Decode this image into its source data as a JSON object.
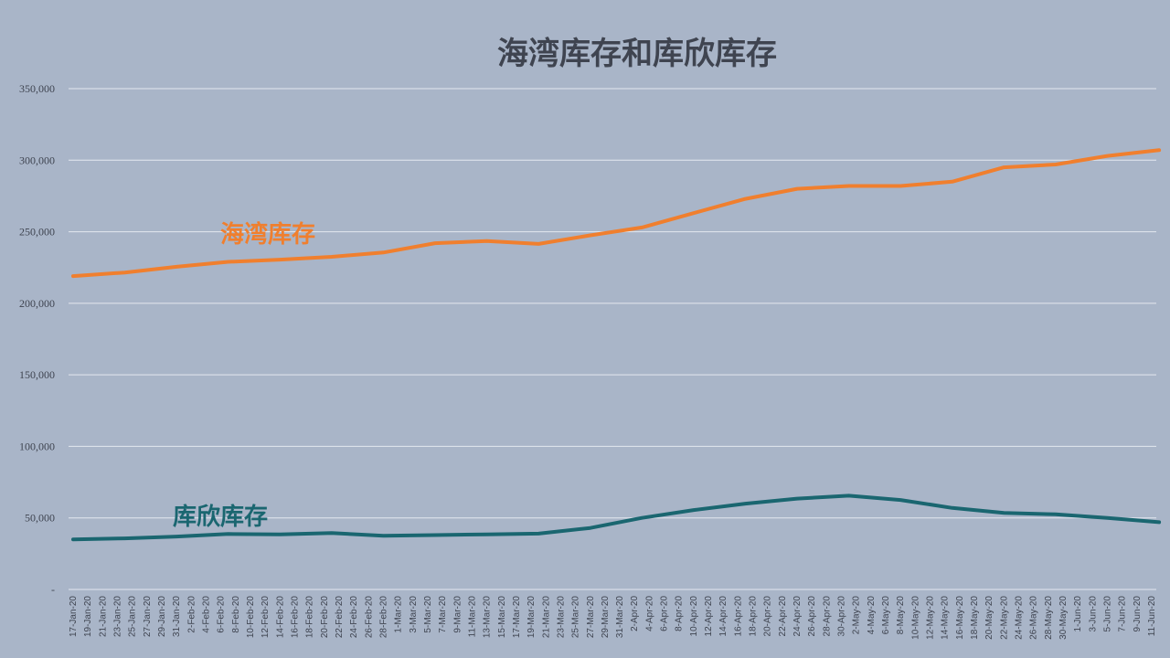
{
  "chart_data": {
    "type": "line",
    "title": "海湾库存和库欣库存",
    "xlabel": "",
    "ylabel": "",
    "ylim": [
      0,
      350000
    ],
    "y_ticks": [
      0,
      50000,
      100000,
      150000,
      200000,
      250000,
      300000,
      350000
    ],
    "y_tick_labels": [
      "-",
      "50,000",
      "100,000",
      "150,000",
      "200,000",
      "250,000",
      "300,000",
      "350,000"
    ],
    "grid": true,
    "legend": "inline",
    "categories": [
      "17-Jan-20",
      "19-Jan-20",
      "21-Jan-20",
      "23-Jan-20",
      "25-Jan-20",
      "27-Jan-20",
      "29-Jan-20",
      "31-Jan-20",
      "2-Feb-20",
      "4-Feb-20",
      "6-Feb-20",
      "8-Feb-20",
      "10-Feb-20",
      "12-Feb-20",
      "14-Feb-20",
      "16-Feb-20",
      "18-Feb-20",
      "20-Feb-20",
      "22-Feb-20",
      "24-Feb-20",
      "26-Feb-20",
      "28-Feb-20",
      "1-Mar-20",
      "3-Mar-20",
      "5-Mar-20",
      "7-Mar-20",
      "9-Mar-20",
      "11-Mar-20",
      "13-Mar-20",
      "15-Mar-20",
      "17-Mar-20",
      "19-Mar-20",
      "21-Mar-20",
      "23-Mar-20",
      "25-Mar-20",
      "27-Mar-20",
      "29-Mar-20",
      "31-Mar-20",
      "2-Apr-20",
      "4-Apr-20",
      "6-Apr-20",
      "8-Apr-20",
      "10-Apr-20",
      "12-Apr-20",
      "14-Apr-20",
      "16-Apr-20",
      "18-Apr-20",
      "20-Apr-20",
      "22-Apr-20",
      "24-Apr-20",
      "26-Apr-20",
      "28-Apr-20",
      "30-Apr-20",
      "2-May-20",
      "4-May-20",
      "6-May-20",
      "8-May-20",
      "10-May-20",
      "12-May-20",
      "14-May-20",
      "16-May-20",
      "18-May-20",
      "20-May-20",
      "22-May-20",
      "24-May-20",
      "26-May-20",
      "28-May-20",
      "30-May-20",
      "1-Jun-20",
      "3-Jun-20",
      "5-Jun-20",
      "7-Jun-20",
      "9-Jun-20",
      "11-Jun-20"
    ],
    "series": [
      {
        "name": "海湾库存",
        "color": "#f07f2e",
        "points": [
          [
            "17-Jan-20",
            219000
          ],
          [
            "24-Jan-20",
            221500
          ],
          [
            "31-Jan-20",
            225500
          ],
          [
            "7-Feb-20",
            229000
          ],
          [
            "14-Feb-20",
            230500
          ],
          [
            "21-Feb-20",
            232500
          ],
          [
            "28-Feb-20",
            235500
          ],
          [
            "6-Mar-20",
            242000
          ],
          [
            "13-Mar-20",
            243500
          ],
          [
            "20-Mar-20",
            241500
          ],
          [
            "27-Mar-20",
            247500
          ],
          [
            "3-Apr-20",
            253000
          ],
          [
            "10-Apr-20",
            263000
          ],
          [
            "17-Apr-20",
            273000
          ],
          [
            "24-Apr-20",
            280000
          ],
          [
            "1-May-20",
            282000
          ],
          [
            "8-May-20",
            282000
          ],
          [
            "15-May-20",
            285000
          ],
          [
            "22-May-20",
            295000
          ],
          [
            "29-May-20",
            297000
          ],
          [
            "5-Jun-20",
            303000
          ],
          [
            "12-Jun-20",
            307000
          ]
        ]
      },
      {
        "name": "库欣库存",
        "color": "#1a6670",
        "points": [
          [
            "17-Jan-20",
            35000
          ],
          [
            "24-Jan-20",
            35700
          ],
          [
            "31-Jan-20",
            37000
          ],
          [
            "7-Feb-20",
            38800
          ],
          [
            "14-Feb-20",
            38500
          ],
          [
            "21-Feb-20",
            39500
          ],
          [
            "28-Feb-20",
            37500
          ],
          [
            "6-Mar-20",
            38000
          ],
          [
            "13-Mar-20",
            38500
          ],
          [
            "20-Mar-20",
            39000
          ],
          [
            "27-Mar-20",
            43000
          ],
          [
            "3-Apr-20",
            50000
          ],
          [
            "10-Apr-20",
            55500
          ],
          [
            "17-Apr-20",
            60000
          ],
          [
            "24-Apr-20",
            63500
          ],
          [
            "1-May-20",
            65500
          ],
          [
            "8-May-20",
            62500
          ],
          [
            "15-May-20",
            57000
          ],
          [
            "22-May-20",
            53500
          ],
          [
            "29-May-20",
            52500
          ],
          [
            "5-Jun-20",
            50000
          ],
          [
            "12-Jun-20",
            47000
          ]
        ]
      }
    ]
  }
}
